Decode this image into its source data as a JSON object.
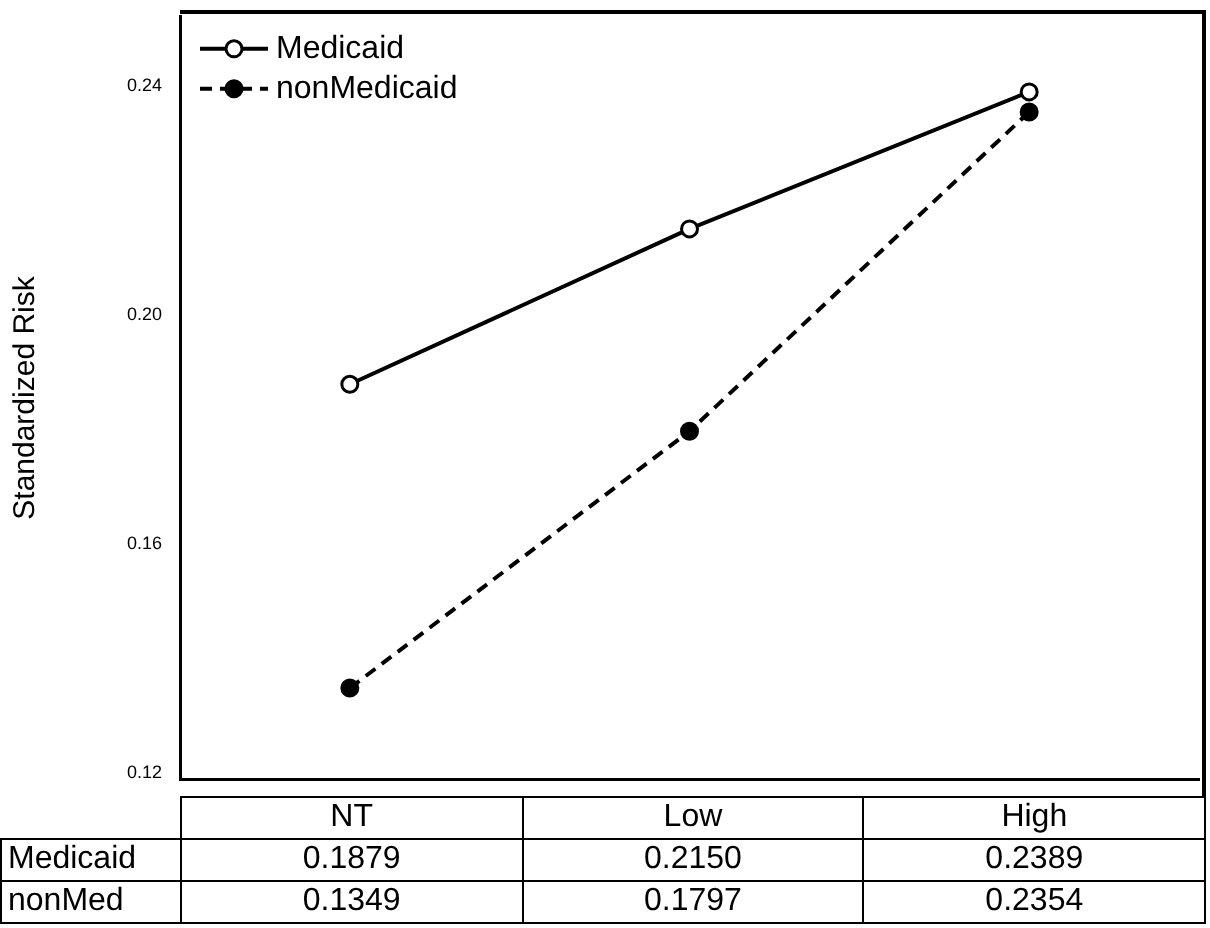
{
  "chart_data": {
    "type": "line",
    "ylabel": "Standardized Risk",
    "categories": [
      "NT",
      "Low",
      "High"
    ],
    "series": [
      {
        "name": "Medicaid",
        "color": "#000000",
        "line_style": "solid",
        "marker": "circle",
        "values": [
          0.1879,
          0.215,
          0.2389
        ],
        "value_labels": [
          "0.1879",
          "0.2150",
          "0.2389"
        ]
      },
      {
        "name": "nonMedicaid",
        "color": "#000000",
        "line_style": "dashed",
        "marker": "circle",
        "values": [
          0.1349,
          0.1797,
          0.2354
        ],
        "value_labels": [
          "0.1349",
          "0.1797",
          "0.2354"
        ]
      }
    ],
    "annotations": [
      "Medicaid",
      "nonMed"
    ],
    "ylim": [
      0.119,
      0.252
    ],
    "yticks": [
      {
        "value": 0.12,
        "label": "0.12"
      },
      {
        "value": 0.16,
        "label": "0.16"
      },
      {
        "value": 0.2,
        "label": "0.20"
      },
      {
        "value": 0.24,
        "label": "0.24"
      }
    ],
    "grid": false,
    "legend": "top left"
  }
}
